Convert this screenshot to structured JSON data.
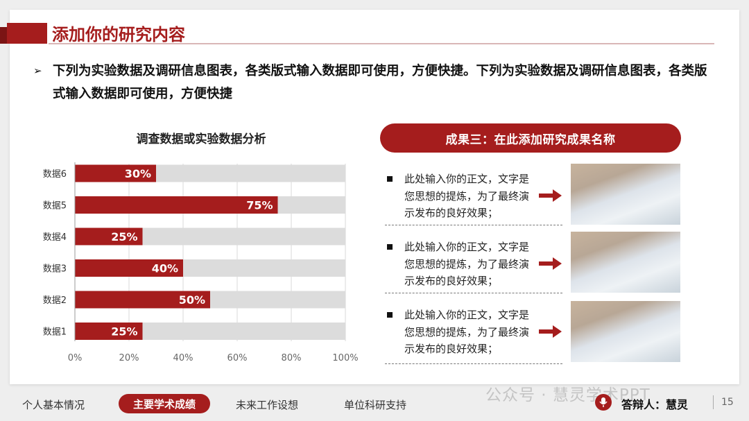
{
  "slide": {
    "title": "添加你的研究内容",
    "intro": "下列为实验数据及调研信息图表，各类版式输入数据即可使用，方便快捷。下列为实验数据及调研信息图表，各类版式输入数据即可使用，方便快捷",
    "chart_title": "调查数据或实验数据分析"
  },
  "result": {
    "heading": "成果三：在此添加研究成果名称",
    "items": [
      {
        "text": "此处输入你的正文，文字是您思想的提炼，为了最终演示发布的良好效果；"
      },
      {
        "text": "此处输入你的正文，文字是您思想的提炼，为了最终演示发布的良好效果；"
      },
      {
        "text": "此处输入你的正文，文字是您思想的提炼，为了最终演示发布的良好效果；"
      }
    ]
  },
  "footer": {
    "nav": [
      "个人基本情况",
      "主要学术成绩",
      "未来工作设想",
      "单位科研支持"
    ],
    "active": "主要学术成绩",
    "watermark": "公众号 · 慧灵学术PPT",
    "speaker": "答辩人：慧灵",
    "page": "15"
  },
  "colors": {
    "accent": "#a51d1d",
    "track": "#dcdcdc"
  },
  "chart_data": {
    "type": "bar",
    "orientation": "horizontal",
    "categories": [
      "数据6",
      "数据5",
      "数据4",
      "数据3",
      "数据2",
      "数据1"
    ],
    "values": [
      30,
      75,
      25,
      40,
      50,
      25
    ],
    "value_labels": [
      "30%",
      "75%",
      "25%",
      "40%",
      "50%",
      "25%"
    ],
    "xlim": [
      0,
      100
    ],
    "xticks": [
      "0%",
      "20%",
      "40%",
      "60%",
      "80%",
      "100%"
    ],
    "title": "调查数据或实验数据分析",
    "grid": true,
    "legend": "none"
  }
}
